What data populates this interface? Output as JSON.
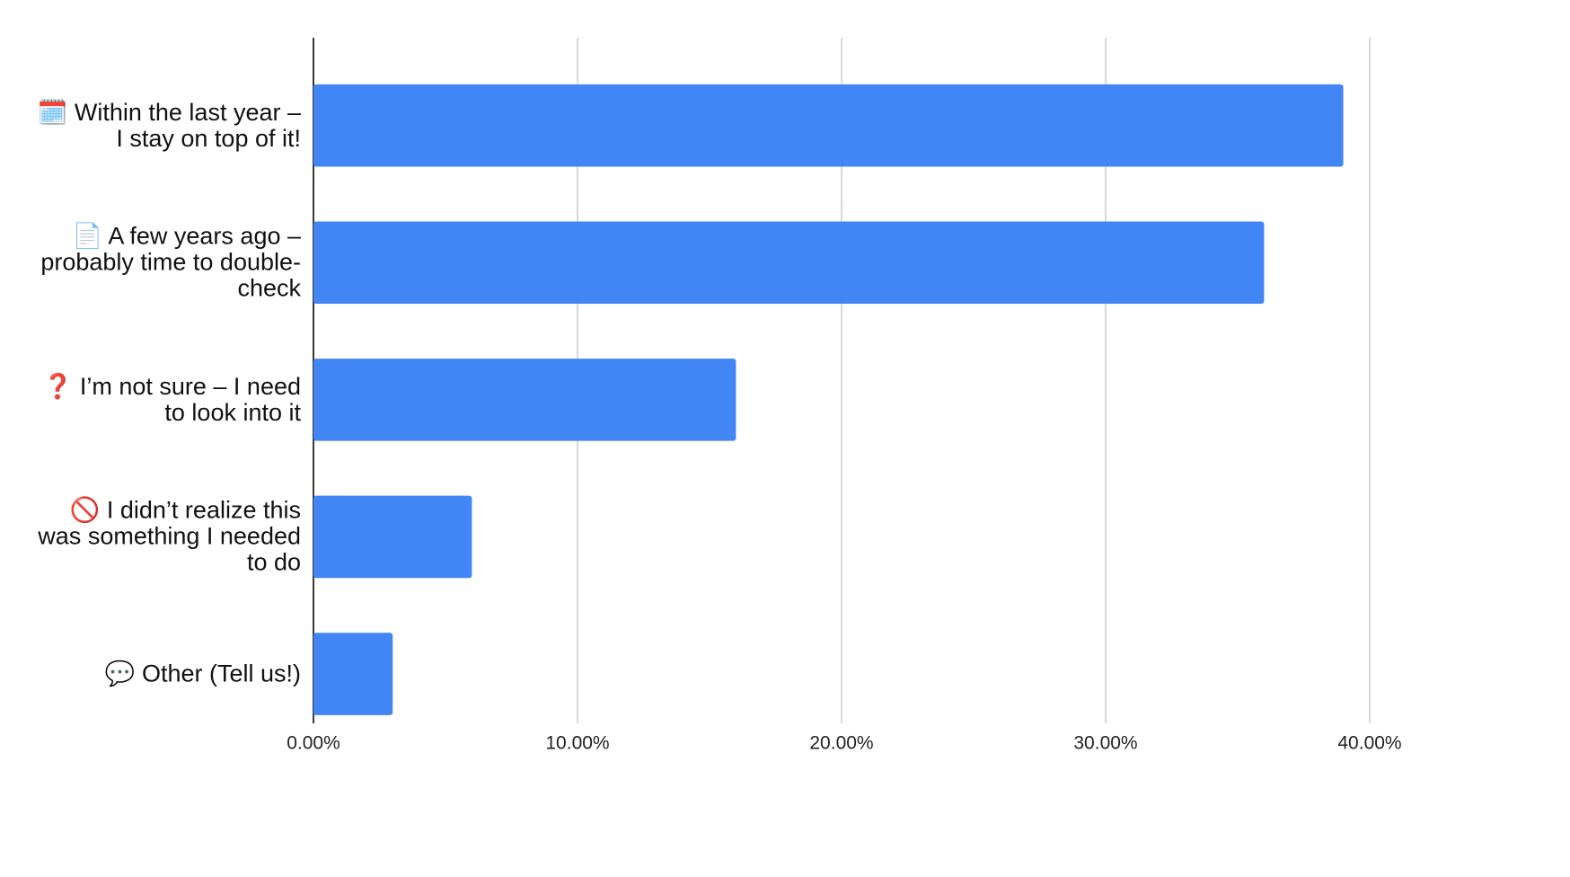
{
  "chart_data": {
    "type": "bar",
    "orientation": "horizontal",
    "categories": [
      "🗓️ Within the last year – I stay on top of it!",
      "📄 A few years ago – probably time to double-check",
      "❓ I’m not sure – I need to look into it",
      "🚫 I didn’t realize this was something I needed to do",
      "💬 Other (Tell us!)"
    ],
    "values": [
      39,
      36,
      16,
      6,
      3
    ],
    "color": "#4285f4",
    "xlim": [
      0,
      40
    ],
    "xticks": [
      {
        "value": 0,
        "label": "0.00%"
      },
      {
        "value": 10,
        "label": "10.00%"
      },
      {
        "value": 20,
        "label": "20.00%"
      },
      {
        "value": 30,
        "label": "30.00%"
      },
      {
        "value": 40,
        "label": "40.00%"
      }
    ],
    "grid": true
  }
}
